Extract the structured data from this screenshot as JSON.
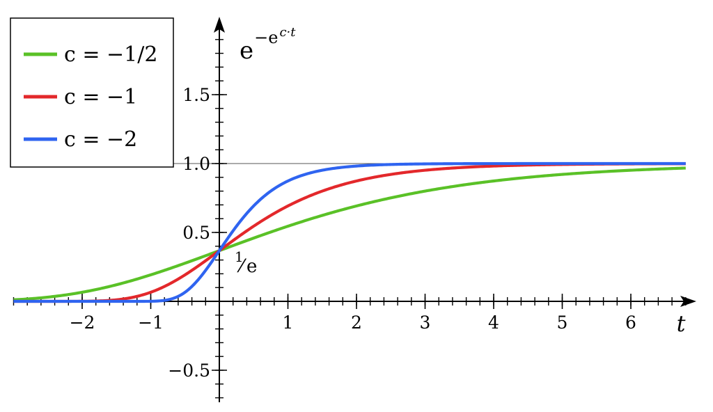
{
  "chart_data": {
    "type": "line",
    "formula": {
      "base": "e",
      "exponent_prefix": "−e",
      "exponent_power": "c·t"
    },
    "xlabel": "t",
    "xlim": [
      -3,
      6.8
    ],
    "ylim": [
      -0.73,
      2.07
    ],
    "x_ticks": [
      -2,
      -1,
      1,
      2,
      3,
      4,
      5,
      6
    ],
    "x_tick_labels": [
      "−2",
      "−1",
      "1",
      "2",
      "3",
      "4",
      "5",
      "6"
    ],
    "y_ticks": [
      1.5,
      1.0,
      0.5,
      -0.5
    ],
    "y_tick_labels": [
      "1.5",
      "1.0",
      "0.5",
      "−0.5"
    ],
    "minor_tick_step": 0.2,
    "asymptote": 1.0,
    "annotation": {
      "numerator": "1",
      "denominator": "e",
      "value": 0.3679
    },
    "legend_position": "top-left",
    "grid": false,
    "series": [
      {
        "name": "c = −1/2",
        "c": -0.5,
        "color": "#5ac127"
      },
      {
        "name": "c = −1",
        "c": -1,
        "color": "#e3282b"
      },
      {
        "name": "c = −2",
        "c": -2,
        "color": "#2f64f0"
      }
    ]
  }
}
